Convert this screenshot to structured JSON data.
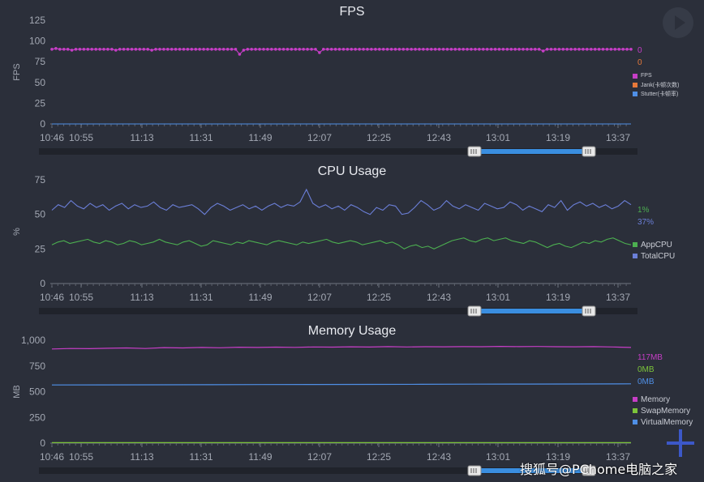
{
  "colors": {
    "background": "#2b2f3a",
    "axis": "#8a8f9a",
    "scrollbar": "#3a8ee0"
  },
  "watermark": "搜狐号@PChome电脑之家",
  "charts": {
    "fps": {
      "current_values": [
        "0",
        "0"
      ],
      "legend": [
        {
          "label": "FPS",
          "color": "#c63ec6"
        },
        {
          "label": "Jank(卡顿次数)",
          "color": "#e6793a"
        },
        {
          "label": "Stutter(卡顿率)",
          "color": "#4f8fe6"
        }
      ]
    },
    "cpu": {
      "current_values": [
        "1%",
        "37%"
      ],
      "legend": [
        {
          "label": "AppCPU",
          "color": "#4caf50"
        },
        {
          "label": "TotalCPU",
          "color": "#6b7fd8"
        }
      ]
    },
    "memory": {
      "current_values": [
        "117MB",
        "0MB",
        "0MB"
      ],
      "legend": [
        {
          "label": "Memory",
          "color": "#c63ec6"
        },
        {
          "label": "SwapMemory",
          "color": "#7cc43a"
        },
        {
          "label": "VirtualMemory",
          "color": "#4f8fe6"
        }
      ]
    }
  },
  "chart_data": [
    {
      "type": "line",
      "title": "FPS",
      "ylabel": "FPS",
      "xlabel": "",
      "ylim": [
        0,
        125
      ],
      "yticks": [
        "0",
        "25",
        "50",
        "75",
        "100",
        "125"
      ],
      "xticks": [
        "10:46",
        "10:55",
        "11:13",
        "11:31",
        "11:49",
        "12:07",
        "12:25",
        "12:43",
        "13:01",
        "13:19",
        "13:37"
      ],
      "series": [
        {
          "name": "FPS",
          "color": "#c63ec6",
          "markers": true,
          "values": [
            90,
            91,
            90,
            90,
            90,
            89,
            90,
            90,
            90,
            90,
            90,
            90,
            90,
            90,
            90,
            90,
            89,
            90,
            90,
            90,
            90,
            90,
            90,
            90,
            90,
            89,
            90,
            90,
            90,
            90,
            90,
            90,
            90,
            90,
            90,
            90,
            90,
            90,
            90,
            90,
            90,
            90,
            90,
            90,
            90,
            90,
            90,
            84,
            89,
            90,
            90,
            90,
            90,
            90,
            90,
            90,
            90,
            90,
            90,
            90,
            90,
            90,
            90,
            90,
            90,
            90,
            90,
            86,
            90,
            90,
            90,
            90,
            90,
            90,
            90,
            90,
            90,
            90,
            90,
            90,
            90,
            90,
            90,
            90,
            90,
            90,
            90,
            90,
            90,
            90,
            90,
            90,
            90,
            90,
            90,
            90,
            90,
            90,
            90,
            90,
            90,
            90,
            90,
            90,
            90,
            90,
            90,
            90,
            90,
            90,
            90,
            90,
            90,
            90,
            90,
            90,
            90,
            90,
            90,
            90,
            90,
            90,
            90,
            88,
            90,
            90,
            90,
            90,
            90,
            90,
            90,
            90,
            90,
            90,
            90,
            90,
            90,
            90,
            90,
            90,
            90,
            90,
            90,
            90,
            90,
            90
          ]
        },
        {
          "name": "Jank(卡顿次数)",
          "color": "#e6793a",
          "values": [
            0,
            0
          ]
        },
        {
          "name": "Stutter(卡顿率)",
          "color": "#4f8fe6",
          "values": [
            0,
            0
          ]
        }
      ]
    },
    {
      "type": "line",
      "title": "CPU Usage",
      "ylabel": "%",
      "xlabel": "",
      "ylim": [
        0,
        75
      ],
      "yticks": [
        "0",
        "25",
        "50",
        "75"
      ],
      "xticks": [
        "10:46",
        "10:55",
        "11:13",
        "11:31",
        "11:49",
        "12:07",
        "12:25",
        "12:43",
        "13:01",
        "13:19",
        "13:37"
      ],
      "series": [
        {
          "name": "AppCPU",
          "color": "#4caf50",
          "values": [
            28,
            30,
            31,
            29,
            30,
            31,
            32,
            30,
            29,
            31,
            30,
            28,
            29,
            31,
            30,
            28,
            29,
            30,
            32,
            30,
            29,
            28,
            30,
            31,
            29,
            27,
            28,
            31,
            30,
            29,
            28,
            30,
            29,
            31,
            30,
            29,
            28,
            30,
            31,
            30,
            29,
            28,
            30,
            29,
            30,
            31,
            32,
            30,
            29,
            30,
            31,
            30,
            28,
            29,
            30,
            31,
            29,
            30,
            28,
            25,
            27,
            28,
            26,
            27,
            25,
            27,
            29,
            31,
            32,
            33,
            31,
            30,
            32,
            33,
            31,
            32,
            33,
            31,
            30,
            29,
            31,
            30,
            28,
            26,
            28,
            29,
            27,
            26,
            28,
            30,
            29,
            31,
            30,
            32,
            33,
            31,
            29,
            28
          ]
        },
        {
          "name": "TotalCPU",
          "color": "#6b7fd8",
          "values": [
            53,
            57,
            55,
            60,
            56,
            54,
            58,
            55,
            57,
            53,
            56,
            58,
            54,
            57,
            55,
            56,
            59,
            55,
            53,
            57,
            55,
            56,
            57,
            54,
            50,
            55,
            58,
            56,
            53,
            55,
            57,
            54,
            56,
            53,
            56,
            58,
            55,
            57,
            56,
            59,
            68,
            58,
            55,
            57,
            54,
            56,
            53,
            57,
            55,
            52,
            50,
            55,
            53,
            57,
            56,
            50,
            51,
            55,
            60,
            57,
            53,
            55,
            60,
            56,
            54,
            57,
            55,
            53,
            58,
            56,
            54,
            55,
            59,
            57,
            53,
            56,
            54,
            52,
            57,
            55,
            60,
            53,
            57,
            59,
            56,
            58,
            55,
            57,
            54,
            56,
            60,
            57
          ]
        }
      ]
    },
    {
      "type": "line",
      "title": "Memory Usage",
      "ylabel": "MB",
      "xlabel": "",
      "ylim": [
        0,
        1000
      ],
      "yticks": [
        "0",
        "250",
        "500",
        "750",
        "1,000"
      ],
      "xticks": [
        "10:46",
        "10:55",
        "11:13",
        "11:31",
        "11:49",
        "12:07",
        "12:25",
        "12:43",
        "13:01",
        "13:19",
        "13:37"
      ],
      "series": [
        {
          "name": "Memory",
          "color": "#c63ec6",
          "values": [
            915,
            920,
            918,
            922,
            925,
            920,
            928,
            925,
            930,
            927,
            932,
            930,
            933,
            931,
            935,
            933,
            936,
            934,
            938,
            935,
            937,
            936,
            938,
            937,
            940,
            938,
            939,
            937,
            936,
            938,
            935,
            930
          ]
        },
        {
          "name": "SwapMemory",
          "color": "#7cc43a",
          "values": [
            5,
            5
          ]
        },
        {
          "name": "VirtualMemory",
          "color": "#4f8fe6",
          "values": [
            565,
            566,
            567,
            568,
            569,
            570,
            571,
            572,
            573,
            574,
            575,
            576
          ]
        }
      ]
    }
  ]
}
